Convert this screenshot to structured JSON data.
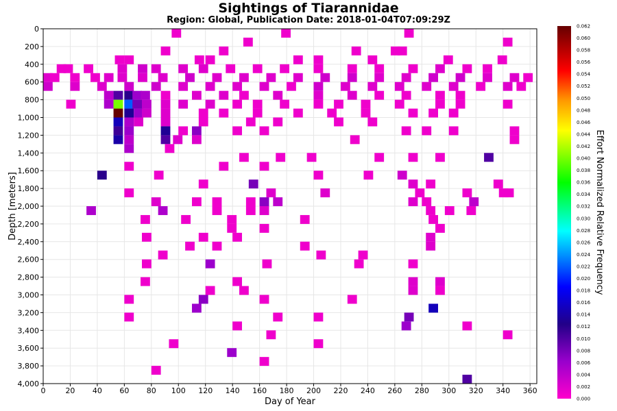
{
  "chart_data": {
    "type": "heatmap",
    "title": "Sightings of Tiarannidae",
    "subtitle": "Region: Global, Publication Date: 2018-01-04T07:09:29Z",
    "xlabel": "Day of Year",
    "ylabel": "Depth [meters]",
    "colorbar_label": "Effort Normalized Relative Frequency",
    "xlim": [
      0,
      365
    ],
    "ylim": [
      4000,
      0
    ],
    "x_ticks": [
      "0",
      "20",
      "40",
      "60",
      "80",
      "100",
      "120",
      "140",
      "160",
      "180",
      "200",
      "220",
      "240",
      "260",
      "280",
      "300",
      "320",
      "340",
      "360"
    ],
    "y_ticks": [
      "0",
      "200",
      "400",
      "600",
      "800",
      "1,000",
      "1,200",
      "1,400",
      "1,600",
      "1,800",
      "2,000",
      "2,200",
      "2,400",
      "2,600",
      "2,800",
      "3,000",
      "3,200",
      "3,400",
      "3,600",
      "3,800",
      "4,000"
    ],
    "colorbar_ticks": [
      "0.000",
      "0.002",
      "0.004",
      "0.006",
      "0.008",
      "0.010",
      "0.012",
      "0.014",
      "0.016",
      "0.018",
      "0.020",
      "0.022",
      "0.024",
      "0.026",
      "0.028",
      "0.030",
      "0.032",
      "0.034",
      "0.036",
      "0.038",
      "0.040",
      "0.042",
      "0.044",
      "0.046",
      "0.048",
      "0.050",
      "0.052",
      "0.054",
      "0.056",
      "0.058",
      "0.060",
      "0.062"
    ],
    "colorbar_range": [
      0,
      0.062
    ],
    "bin_size": {
      "day": 7,
      "depth_m": 100
    },
    "cells": [
      [
        95,
        0,
        0.001
      ],
      [
        176,
        0,
        0.001
      ],
      [
        267,
        0,
        0.001
      ],
      [
        148,
        100,
        0.001
      ],
      [
        340,
        100,
        0.001
      ],
      [
        87,
        200,
        0.001
      ],
      [
        130,
        200,
        0.001
      ],
      [
        228,
        200,
        0.001
      ],
      [
        257,
        200,
        0.001
      ],
      [
        262,
        200,
        0.001
      ],
      [
        53,
        300,
        0.001
      ],
      [
        60,
        300,
        0.001
      ],
      [
        112,
        300,
        0.001
      ],
      [
        120,
        300,
        0.001
      ],
      [
        185,
        300,
        0.001
      ],
      [
        200,
        300,
        0.001
      ],
      [
        240,
        300,
        0.001
      ],
      [
        296,
        300,
        0.001
      ],
      [
        336,
        300,
        0.001
      ],
      [
        10,
        400,
        0.001
      ],
      [
        15,
        400,
        0.001
      ],
      [
        30,
        400,
        0.001
      ],
      [
        55,
        400,
        0.002
      ],
      [
        70,
        400,
        0.003
      ],
      [
        80,
        400,
        0.002
      ],
      [
        100,
        400,
        0.002
      ],
      [
        115,
        400,
        0.002
      ],
      [
        135,
        400,
        0.001
      ],
      [
        155,
        400,
        0.001
      ],
      [
        175,
        400,
        0.001
      ],
      [
        200,
        400,
        0.001
      ],
      [
        225,
        400,
        0.001
      ],
      [
        245,
        400,
        0.001
      ],
      [
        270,
        400,
        0.001
      ],
      [
        290,
        400,
        0.002
      ],
      [
        310,
        400,
        0.001
      ],
      [
        325,
        400,
        0.001
      ],
      [
        0,
        500,
        0.002
      ],
      [
        5,
        500,
        0.001
      ],
      [
        20,
        500,
        0.001
      ],
      [
        35,
        500,
        0.001
      ],
      [
        45,
        500,
        0.002
      ],
      [
        55,
        500,
        0.002
      ],
      [
        70,
        500,
        0.002
      ],
      [
        85,
        500,
        0.002
      ],
      [
        105,
        500,
        0.003
      ],
      [
        125,
        500,
        0.002
      ],
      [
        145,
        500,
        0.002
      ],
      [
        165,
        500,
        0.002
      ],
      [
        185,
        500,
        0.002
      ],
      [
        205,
        500,
        0.003
      ],
      [
        225,
        500,
        0.003
      ],
      [
        245,
        500,
        0.002
      ],
      [
        265,
        500,
        0.002
      ],
      [
        285,
        500,
        0.003
      ],
      [
        305,
        500,
        0.003
      ],
      [
        325,
        500,
        0.002
      ],
      [
        345,
        500,
        0.002
      ],
      [
        355,
        500,
        0.001
      ],
      [
        0,
        600,
        0.003
      ],
      [
        20,
        600,
        0.002
      ],
      [
        40,
        600,
        0.002
      ],
      [
        60,
        600,
        0.003
      ],
      [
        80,
        600,
        0.003
      ],
      [
        100,
        600,
        0.002
      ],
      [
        120,
        600,
        0.002
      ],
      [
        140,
        600,
        0.002
      ],
      [
        160,
        600,
        0.002
      ],
      [
        180,
        600,
        0.001
      ],
      [
        200,
        600,
        0.003
      ],
      [
        220,
        600,
        0.002
      ],
      [
        240,
        600,
        0.002
      ],
      [
        260,
        600,
        0.002
      ],
      [
        280,
        600,
        0.002
      ],
      [
        300,
        600,
        0.002
      ],
      [
        320,
        600,
        0.001
      ],
      [
        340,
        600,
        0.002
      ],
      [
        350,
        600,
        0.001
      ],
      [
        45,
        700,
        0.004
      ],
      [
        52,
        700,
        0.01
      ],
      [
        60,
        700,
        0.012
      ],
      [
        66,
        700,
        0.006
      ],
      [
        72,
        700,
        0.005
      ],
      [
        87,
        700,
        0.001
      ],
      [
        110,
        700,
        0.002
      ],
      [
        130,
        700,
        0.002
      ],
      [
        145,
        700,
        0.001
      ],
      [
        170,
        700,
        0.002
      ],
      [
        200,
        700,
        0.002
      ],
      [
        225,
        700,
        0.002
      ],
      [
        245,
        700,
        0.001
      ],
      [
        265,
        700,
        0.001
      ],
      [
        290,
        700,
        0.001
      ],
      [
        305,
        700,
        0.001
      ],
      [
        17,
        800,
        0.001
      ],
      [
        45,
        800,
        0.005
      ],
      [
        52,
        800,
        0.04
      ],
      [
        60,
        800,
        0.022
      ],
      [
        66,
        800,
        0.008
      ],
      [
        73,
        800,
        0.004
      ],
      [
        87,
        800,
        0.002
      ],
      [
        100,
        800,
        0.002
      ],
      [
        120,
        800,
        0.002
      ],
      [
        140,
        800,
        0.001
      ],
      [
        155,
        800,
        0.001
      ],
      [
        175,
        800,
        0.001
      ],
      [
        200,
        800,
        0.001
      ],
      [
        215,
        800,
        0.001
      ],
      [
        235,
        800,
        0.001
      ],
      [
        260,
        800,
        0.001
      ],
      [
        290,
        800,
        0.001
      ],
      [
        305,
        800,
        0.001
      ],
      [
        340,
        800,
        0.001
      ],
      [
        52,
        900,
        0.062
      ],
      [
        60,
        900,
        0.013
      ],
      [
        67,
        900,
        0.006
      ],
      [
        73,
        900,
        0.003
      ],
      [
        87,
        900,
        0.002
      ],
      [
        115,
        900,
        0.001
      ],
      [
        130,
        900,
        0.001
      ],
      [
        155,
        900,
        0.001
      ],
      [
        185,
        900,
        0.001
      ],
      [
        210,
        900,
        0.001
      ],
      [
        235,
        900,
        0.001
      ],
      [
        270,
        900,
        0.001
      ],
      [
        285,
        900,
        0.001
      ],
      [
        300,
        900,
        0.001
      ],
      [
        52,
        1000,
        0.015
      ],
      [
        60,
        1000,
        0.005
      ],
      [
        67,
        1000,
        0.002
      ],
      [
        87,
        1000,
        0.002
      ],
      [
        115,
        1000,
        0.001
      ],
      [
        150,
        1000,
        0.001
      ],
      [
        170,
        1000,
        0.001
      ],
      [
        215,
        1000,
        0.001
      ],
      [
        240,
        1000,
        0.001
      ],
      [
        52,
        1100,
        0.011
      ],
      [
        60,
        1100,
        0.006
      ],
      [
        87,
        1100,
        0.013
      ],
      [
        100,
        1100,
        0.001
      ],
      [
        110,
        1100,
        0.007
      ],
      [
        140,
        1100,
        0.001
      ],
      [
        160,
        1100,
        0.001
      ],
      [
        265,
        1100,
        0.001
      ],
      [
        280,
        1100,
        0.001
      ],
      [
        300,
        1100,
        0.001
      ],
      [
        345,
        1100,
        0.001
      ],
      [
        52,
        1200,
        0.014
      ],
      [
        60,
        1200,
        0.004
      ],
      [
        87,
        1200,
        0.01
      ],
      [
        96,
        1200,
        0.002
      ],
      [
        110,
        1200,
        0.002
      ],
      [
        227,
        1200,
        0.001
      ],
      [
        345,
        1200,
        0.001
      ],
      [
        60,
        1300,
        0.005
      ],
      [
        90,
        1300,
        0.001
      ],
      [
        145,
        1400,
        0.001
      ],
      [
        172,
        1400,
        0.001
      ],
      [
        195,
        1400,
        0.001
      ],
      [
        245,
        1400,
        0.001
      ],
      [
        270,
        1400,
        0.001
      ],
      [
        290,
        1400,
        0.001
      ],
      [
        326,
        1400,
        0.01
      ],
      [
        60,
        1500,
        0.001
      ],
      [
        130,
        1500,
        0.001
      ],
      [
        160,
        1500,
        0.001
      ],
      [
        40,
        1600,
        0.012
      ],
      [
        82,
        1600,
        0.001
      ],
      [
        200,
        1600,
        0.001
      ],
      [
        237,
        1600,
        0.001
      ],
      [
        262,
        1600,
        0.003
      ],
      [
        115,
        1700,
        0.001
      ],
      [
        152,
        1700,
        0.008
      ],
      [
        270,
        1700,
        0.002
      ],
      [
        283,
        1700,
        0.001
      ],
      [
        333,
        1700,
        0.001
      ],
      [
        60,
        1800,
        0.001
      ],
      [
        165,
        1800,
        0.002
      ],
      [
        205,
        1800,
        0.002
      ],
      [
        275,
        1800,
        0.001
      ],
      [
        310,
        1800,
        0.001
      ],
      [
        337,
        1800,
        0.001
      ],
      [
        341,
        1800,
        0.001
      ],
      [
        80,
        1900,
        0.002
      ],
      [
        110,
        1900,
        0.001
      ],
      [
        125,
        1900,
        0.001
      ],
      [
        150,
        1900,
        0.001
      ],
      [
        160,
        1900,
        0.007
      ],
      [
        170,
        1900,
        0.004
      ],
      [
        270,
        1900,
        0.002
      ],
      [
        280,
        1900,
        0.001
      ],
      [
        315,
        1900,
        0.004
      ],
      [
        32,
        2000,
        0.005
      ],
      [
        85,
        2000,
        0.005
      ],
      [
        125,
        2000,
        0.001
      ],
      [
        150,
        2000,
        0.001
      ],
      [
        160,
        2000,
        0.002
      ],
      [
        283,
        2000,
        0.001
      ],
      [
        297,
        2000,
        0.001
      ],
      [
        313,
        2000,
        0.001
      ],
      [
        72,
        2100,
        0.001
      ],
      [
        102,
        2100,
        0.001
      ],
      [
        136,
        2100,
        0.001
      ],
      [
        190,
        2100,
        0.001
      ],
      [
        285,
        2100,
        0.001
      ],
      [
        136,
        2200,
        0.001
      ],
      [
        160,
        2200,
        0.001
      ],
      [
        290,
        2200,
        0.001
      ],
      [
        73,
        2300,
        0.001
      ],
      [
        115,
        2300,
        0.001
      ],
      [
        140,
        2300,
        0.001
      ],
      [
        283,
        2300,
        0.002
      ],
      [
        105,
        2400,
        0.001
      ],
      [
        125,
        2400,
        0.001
      ],
      [
        190,
        2400,
        0.001
      ],
      [
        283,
        2400,
        0.002
      ],
      [
        85,
        2500,
        0.001
      ],
      [
        202,
        2500,
        0.001
      ],
      [
        233,
        2500,
        0.001
      ],
      [
        73,
        2600,
        0.001
      ],
      [
        120,
        2600,
        0.006
      ],
      [
        162,
        2600,
        0.001
      ],
      [
        230,
        2600,
        0.001
      ],
      [
        270,
        2600,
        0.001
      ],
      [
        72,
        2800,
        0.001
      ],
      [
        140,
        2800,
        0.001
      ],
      [
        270,
        2800,
        0.002
      ],
      [
        290,
        2800,
        0.002
      ],
      [
        120,
        2900,
        0.001
      ],
      [
        145,
        2900,
        0.001
      ],
      [
        270,
        2900,
        0.002
      ],
      [
        290,
        2900,
        0.001
      ],
      [
        60,
        3000,
        0.001
      ],
      [
        115,
        3000,
        0.007
      ],
      [
        160,
        3000,
        0.001
      ],
      [
        225,
        3000,
        0.001
      ],
      [
        110,
        3100,
        0.006
      ],
      [
        285,
        3100,
        0.015
      ],
      [
        60,
        3200,
        0.001
      ],
      [
        170,
        3200,
        0.001
      ],
      [
        200,
        3200,
        0.001
      ],
      [
        267,
        3200,
        0.008
      ],
      [
        140,
        3300,
        0.001
      ],
      [
        265,
        3300,
        0.006
      ],
      [
        310,
        3300,
        0.001
      ],
      [
        165,
        3400,
        0.001
      ],
      [
        340,
        3400,
        0.001
      ],
      [
        93,
        3500,
        0.001
      ],
      [
        200,
        3500,
        0.001
      ],
      [
        136,
        3600,
        0.006
      ],
      [
        160,
        3700,
        0.001
      ],
      [
        80,
        3800,
        0.001
      ],
      [
        310,
        3900,
        0.01
      ]
    ]
  }
}
